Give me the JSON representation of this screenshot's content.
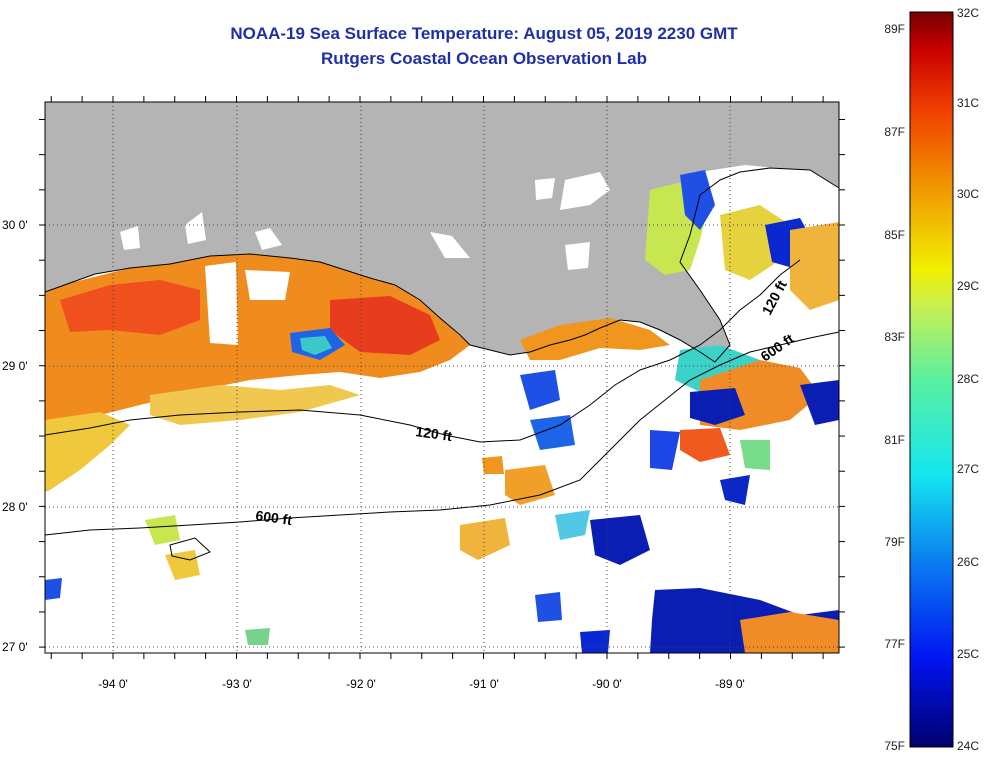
{
  "title": {
    "line1": "NOAA-19 Sea Surface Temperature:  August 05, 2019 2230 GMT",
    "line2": "Rutgers Coastal Ocean Observation Lab"
  },
  "axes": {
    "lon_ticks": [
      "-94 0'",
      "-93 0'",
      "-92 0'",
      "-91 0'",
      "-90 0'",
      "-89 0'"
    ],
    "lat_ticks": [
      "30 0'",
      "29 0'",
      "28 0'",
      "27 0'"
    ]
  },
  "contours": {
    "depth_120": "120 ft",
    "depth_600": "600 ft"
  },
  "colorbar": {
    "fahrenheit": [
      "89F",
      "87F",
      "85F",
      "83F",
      "81F",
      "79F",
      "77F",
      "75F"
    ],
    "celsius": [
      "32C",
      "31C",
      "30C",
      "29C",
      "28C",
      "27C",
      "26C",
      "25C",
      "24C"
    ]
  },
  "colors": {
    "title": "#1f2fa8",
    "land": "#b4b4b4",
    "ocean_nodata": "#ffffff"
  }
}
